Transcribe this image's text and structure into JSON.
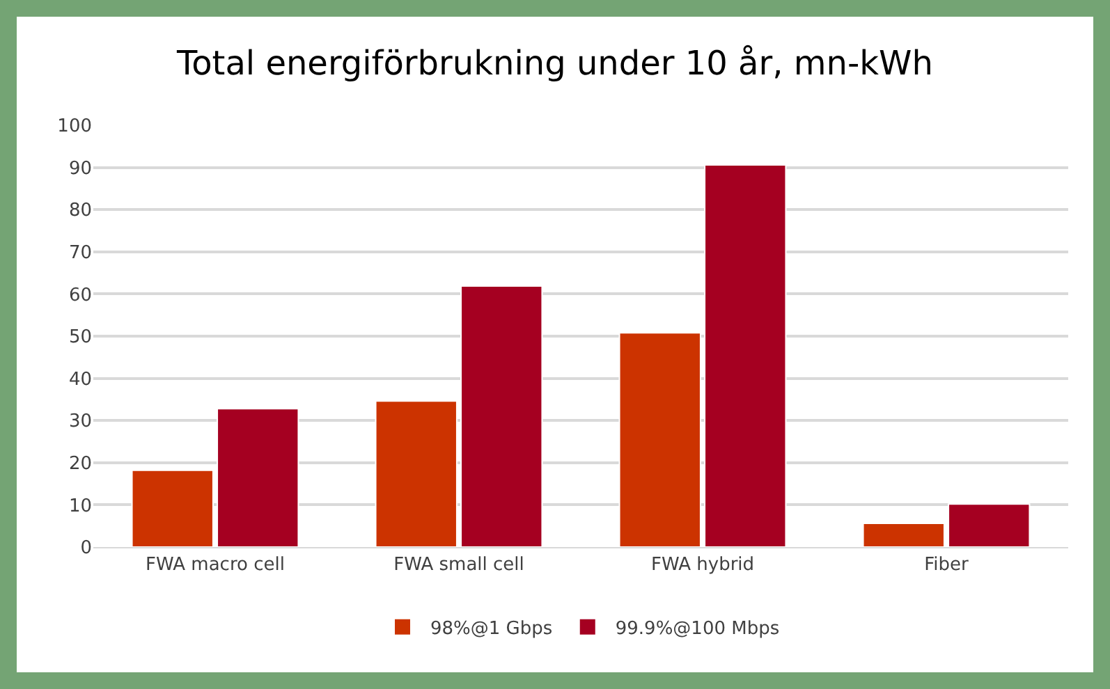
{
  "chart_data": {
    "type": "bar",
    "title": "Total energiförbrukning under 10 år, mn-kWh",
    "categories": [
      "FWA macro cell",
      "FWA small cell",
      "FWA hybrid",
      "Fiber"
    ],
    "series": [
      {
        "name": "98%@1 Gbps",
        "color": "#cc3300",
        "values": [
          18.2,
          34.6,
          50.8,
          5.6
        ]
      },
      {
        "name": "99.9%@100 Mbps",
        "color": "#a50021",
        "values": [
          32.8,
          61.9,
          90.6,
          10.2
        ]
      }
    ],
    "ylim": [
      0,
      100
    ],
    "yticks": [
      0,
      10,
      20,
      30,
      40,
      50,
      60,
      70,
      80,
      90,
      100
    ],
    "grid": "y",
    "legend": "bottom"
  }
}
